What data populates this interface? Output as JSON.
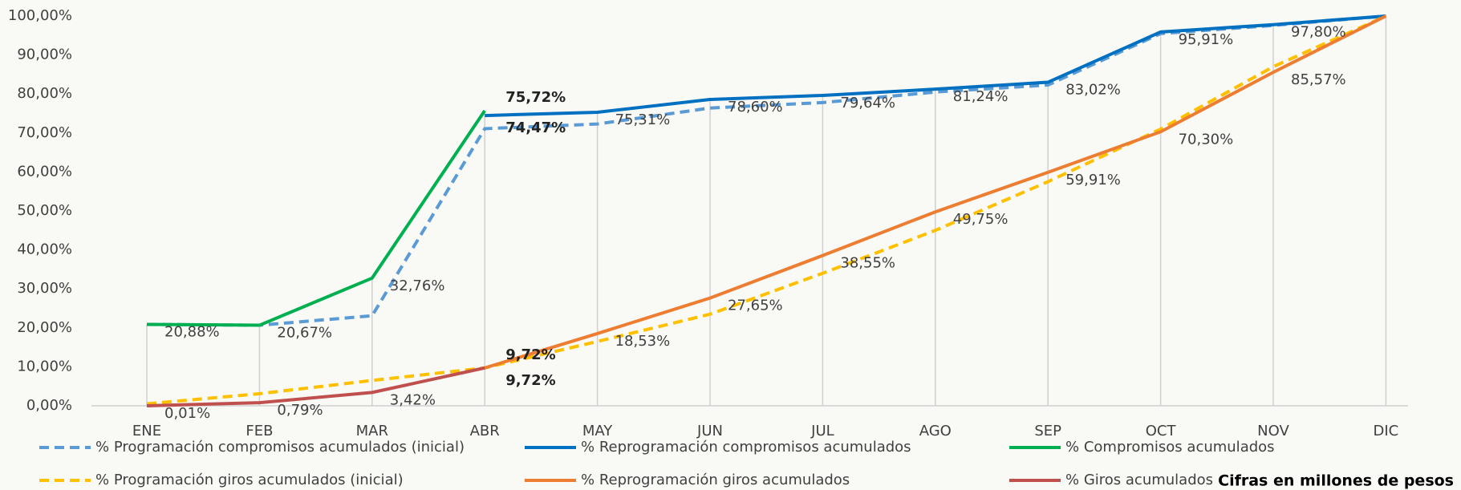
{
  "chart_data": {
    "type": "line",
    "categories": [
      "ENE",
      "FEB",
      "MAR",
      "ABR",
      "MAY",
      "JUN",
      "JUL",
      "AGO",
      "SEP",
      "OCT",
      "NOV",
      "DIC"
    ],
    "ylim": [
      0,
      100
    ],
    "yticks": [
      {
        "value": 0,
        "label": "0,00%"
      },
      {
        "value": 10,
        "label": "10,00%"
      },
      {
        "value": 20,
        "label": "20,00%"
      },
      {
        "value": 30,
        "label": "30,00%"
      },
      {
        "value": 40,
        "label": "40,00%"
      },
      {
        "value": 50,
        "label": "50,00%"
      },
      {
        "value": 60,
        "label": "60,00%"
      },
      {
        "value": 70,
        "label": "70,00%"
      },
      {
        "value": 80,
        "label": "80,00%"
      },
      {
        "value": 90,
        "label": "90,00%"
      },
      {
        "value": 100,
        "label": "100,00%"
      }
    ],
    "series": [
      {
        "name": "% Programación compromisos acumulados (inicial)",
        "color": "#5b9bd5",
        "dashed": true,
        "values": [
          20.88,
          20.67,
          23.1,
          71.1,
          72.3,
          76.4,
          77.8,
          80.5,
          82.3,
          95.5,
          97.6,
          100
        ]
      },
      {
        "name": "% Reprogramación compromisos acumulados",
        "color": "#0070c0",
        "dashed": false,
        "values": [
          null,
          null,
          null,
          74.47,
          75.31,
          78.6,
          79.64,
          81.24,
          83.02,
          95.91,
          97.8,
          100
        ],
        "value_labels": [
          null,
          null,
          null,
          "74,47%",
          "75,31%",
          "78,60%",
          "79,64%",
          "81,24%",
          "83,02%",
          "95,91%",
          "97,80%",
          null
        ]
      },
      {
        "name": "% Compromisos acumulados",
        "color": "#00b050",
        "dashed": false,
        "values": [
          20.88,
          20.67,
          32.76,
          75.72,
          null,
          null,
          null,
          null,
          null,
          null,
          null,
          null
        ],
        "value_labels": [
          "20,88%",
          "20,67%",
          "32,76%",
          "75,72%",
          null,
          null,
          null,
          null,
          null,
          null,
          null,
          null
        ]
      },
      {
        "name": "% Programación giros acumulados (inicial)",
        "color": "#ffc000",
        "dashed": true,
        "values": [
          0.5,
          3.1,
          6.5,
          9.72,
          16.5,
          23.5,
          34,
          45,
          57.5,
          71,
          87,
          100
        ]
      },
      {
        "name": "% Reprogramación giros acumulados",
        "color": "#ed7d31",
        "dashed": false,
        "values": [
          null,
          null,
          null,
          9.72,
          18.53,
          27.65,
          38.55,
          49.75,
          59.91,
          70.3,
          85.57,
          100
        ],
        "value_labels": [
          null,
          null,
          null,
          "9,72%",
          "18,53%",
          "27,65%",
          "38,55%",
          "49,75%",
          "59,91%",
          "70,30%",
          "85,57%",
          null
        ]
      },
      {
        "name": "% Giros acumulados",
        "color": "#c0504d",
        "dashed": false,
        "values": [
          0.01,
          0.79,
          3.42,
          9.72,
          null,
          null,
          null,
          null,
          null,
          null,
          null,
          null
        ],
        "value_labels": [
          "0,01%",
          "0,79%",
          "3,42%",
          "9,72%",
          null,
          null,
          null,
          null,
          null,
          null,
          null,
          null
        ]
      }
    ],
    "note": "Cifras en millones de pesos"
  }
}
